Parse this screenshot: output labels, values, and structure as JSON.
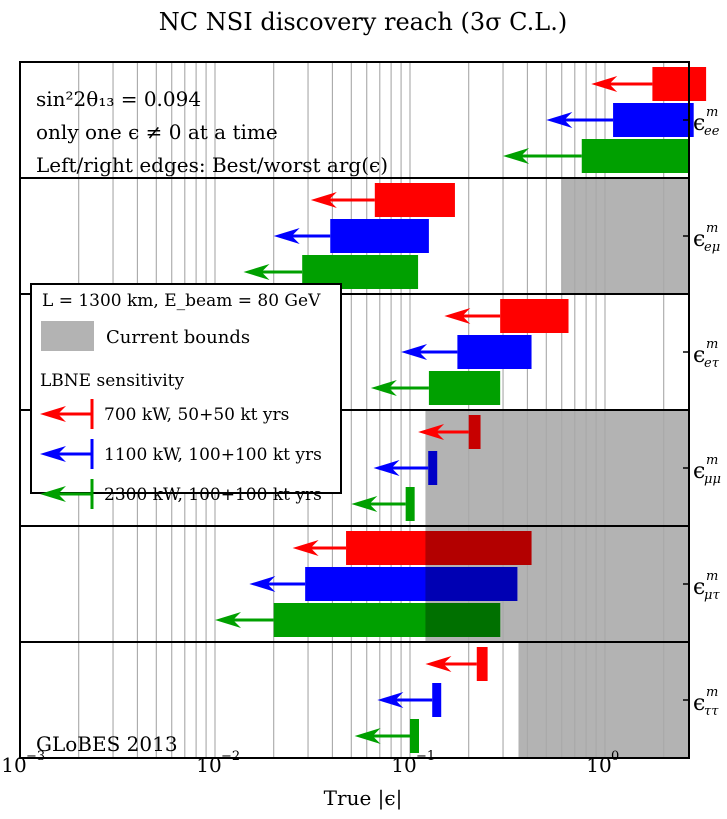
{
  "chart_data": {
    "type": "bar",
    "title": "NC NSI discovery reach (3σ C.L.)",
    "xlabel": "True |ϵ|",
    "xscale": "log",
    "xlim": [
      0.001,
      3.3
    ],
    "x_ticks": [
      {
        "value": 0.001,
        "base": "10",
        "exp": "−3"
      },
      {
        "value": 0.01,
        "base": "10",
        "exp": "−2"
      },
      {
        "value": 0.1,
        "base": "10",
        "exp": "−1"
      },
      {
        "value": 1,
        "base": "10",
        "exp": "0"
      }
    ],
    "grid": true,
    "annotations": {
      "line1": "sin²2θ₁₃ = 0.094",
      "line2": "only one ϵ ≠ 0 at a time",
      "line3": "Left/right edges: Best/worst arg(ϵ)",
      "credit": "GLoBES 2013"
    },
    "legend": {
      "position": "left-middle",
      "header": "L = 1300 km, E_beam = 80 GeV",
      "bounds_label": "Current bounds",
      "section_label": "LBNE sensitivity",
      "entries": [
        {
          "name": "700 kW, 50+50 kt yrs",
          "color": "#ff0000"
        },
        {
          "name": "1100 kW, 100+100 kt yrs",
          "color": "#0000ff"
        },
        {
          "name": "2300 kW, 100+100 kt yrs",
          "color": "#00a000"
        }
      ]
    },
    "rows": [
      {
        "label": "ϵ^m_ee",
        "sym": "ϵ",
        "sup": "m",
        "sub": "ee",
        "bound": null,
        "bars": [
          {
            "series": "700 kW, 50+50 kt yrs",
            "color": "#ff0000",
            "lo": 1.75,
            "hi": 3.3,
            "arrow_to": 0.85
          },
          {
            "series": "1100 kW, 100+100 kt yrs",
            "color": "#0000ff",
            "lo": 1.1,
            "hi": 2.85,
            "arrow_to": 0.5
          },
          {
            "series": "2300 kW, 100+100 kt yrs",
            "color": "#00a000",
            "lo": 0.76,
            "hi": 2.7,
            "arrow_to": 0.3
          }
        ]
      },
      {
        "label": "ϵ^m_eμ",
        "sym": "ϵ",
        "sup": "m",
        "sub": "eμ",
        "bound": 0.6,
        "bars": [
          {
            "series": "700 kW, 50+50 kt yrs",
            "color": "#ff0000",
            "lo": 0.066,
            "hi": 0.17,
            "arrow_to": 0.031
          },
          {
            "series": "1100 kW, 100+100 kt yrs",
            "color": "#0000ff",
            "lo": 0.039,
            "hi": 0.125,
            "arrow_to": 0.02
          },
          {
            "series": "2300 kW, 100+100 kt yrs",
            "color": "#00a000",
            "lo": 0.028,
            "hi": 0.11,
            "arrow_to": 0.014
          }
        ]
      },
      {
        "label": "ϵ^m_eτ",
        "sym": "ϵ",
        "sup": "m",
        "sub": "eτ",
        "bound": null,
        "bars": [
          {
            "series": "700 kW, 50+50 kt yrs",
            "color": "#ff0000",
            "lo": 0.29,
            "hi": 0.65,
            "arrow_to": 0.15
          },
          {
            "series": "1100 kW, 100+100 kt yrs",
            "color": "#0000ff",
            "lo": 0.175,
            "hi": 0.42,
            "arrow_to": 0.09
          },
          {
            "series": "2300 kW, 100+100 kt yrs",
            "color": "#00a000",
            "lo": 0.125,
            "hi": 0.29,
            "arrow_to": 0.063
          }
        ]
      },
      {
        "label": "ϵ^m_μμ",
        "sym": "ϵ",
        "sup": "m",
        "sub": "μμ",
        "bound": 0.12,
        "bars": [
          {
            "series": "700 kW, 50+50 kt yrs",
            "color": "#ff0000",
            "lo": 0.2,
            "hi": 0.23,
            "arrow_to": 0.11
          },
          {
            "series": "1100 kW, 100+100 kt yrs",
            "color": "#0000ff",
            "lo": 0.124,
            "hi": 0.136,
            "arrow_to": 0.065
          },
          {
            "series": "2300 kW, 100+100 kt yrs",
            "color": "#00a000",
            "lo": 0.095,
            "hi": 0.104,
            "arrow_to": 0.05
          }
        ]
      },
      {
        "label": "ϵ^m_μτ",
        "sym": "ϵ",
        "sup": "m",
        "sub": "μτ",
        "bound": 0.12,
        "bars": [
          {
            "series": "700 kW, 50+50 kt yrs",
            "color": "#ff0000",
            "lo": 0.047,
            "hi": 0.42,
            "arrow_to": 0.025
          },
          {
            "series": "1100 kW, 100+100 kt yrs",
            "color": "#0000ff",
            "lo": 0.029,
            "hi": 0.355,
            "arrow_to": 0.015
          },
          {
            "series": "2300 kW, 100+100 kt yrs",
            "color": "#00a000",
            "lo": 0.02,
            "hi": 0.29,
            "arrow_to": 0.01
          }
        ]
      },
      {
        "label": "ϵ^m_ττ",
        "sym": "ϵ",
        "sup": "m",
        "sub": "ττ",
        "bound": 0.36,
        "bars": [
          {
            "series": "700 kW, 50+50 kt yrs",
            "color": "#ff0000",
            "lo": 0.22,
            "hi": 0.25,
            "arrow_to": 0.12
          },
          {
            "series": "1100 kW, 100+100 kt yrs",
            "color": "#0000ff",
            "lo": 0.13,
            "hi": 0.142,
            "arrow_to": 0.068
          },
          {
            "series": "2300 kW, 100+100 kt yrs",
            "color": "#00a000",
            "lo": 0.1,
            "hi": 0.108,
            "arrow_to": 0.052
          }
        ]
      }
    ]
  },
  "colors": {
    "bound_fill": "#b3b3b3",
    "grid": "#a8a8a8",
    "frame": "#000000"
  }
}
